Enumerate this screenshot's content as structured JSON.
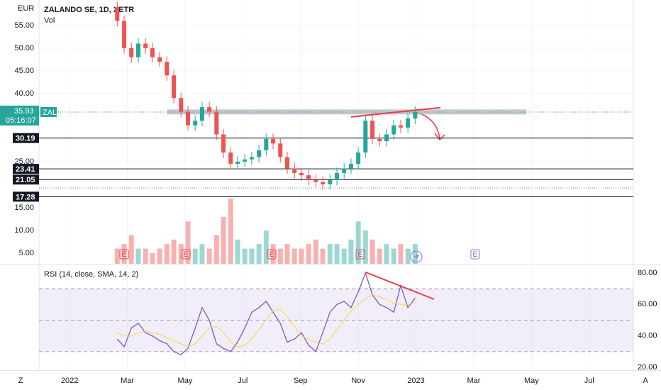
{
  "ui": {
    "left_button": "Z",
    "right_button": "A"
  },
  "chart_data": [
    {
      "type": "candlestick",
      "title": "ZALANDO SE, 1D, XETR",
      "y_label": "EUR",
      "x": [
        1.65,
        1.89,
        2.14,
        2.38,
        2.63,
        2.87,
        3.12,
        3.37,
        3.61,
        3.86,
        4.1,
        4.35,
        4.59,
        4.84,
        5.09,
        5.33,
        5.58,
        5.82,
        6.07,
        6.31,
        6.56,
        6.81,
        7.05,
        7.3,
        7.54,
        7.79,
        8.03,
        8.28,
        8.53,
        8.77,
        9.02,
        9.26,
        9.51,
        9.75,
        10.0,
        10.25,
        10.49,
        10.74,
        10.98,
        11.23,
        11.47,
        11.72,
        11.97
      ],
      "open": [
        59,
        56,
        50,
        48,
        51,
        50,
        48,
        47,
        44,
        39,
        36,
        33,
        34,
        37,
        36,
        31,
        27,
        24.5,
        25,
        25.5,
        26,
        27.5,
        30,
        29,
        26,
        23.5,
        22.5,
        22,
        21,
        20.5,
        20,
        21,
        22.5,
        23.5,
        24.5,
        27,
        34,
        30,
        29.5,
        31,
        33,
        32.5,
        34.5
      ],
      "high": [
        60.2,
        57.2,
        51.2,
        52.2,
        52.2,
        51.2,
        49.2,
        48.2,
        45.2,
        40.2,
        37.2,
        35.2,
        38.2,
        38.2,
        37.2,
        32.2,
        28.2,
        26.2,
        26.7,
        27.2,
        28.7,
        31.2,
        31.2,
        30.2,
        27.2,
        24.7,
        23.7,
        23.2,
        22.2,
        21.7,
        22.2,
        23.7,
        24.7,
        25.7,
        28.2,
        35.2,
        35.2,
        31.2,
        32.2,
        34.2,
        34.2,
        35.7,
        37.13
      ],
      "low": [
        54.8,
        48.8,
        46.8,
        46.8,
        48.8,
        46.8,
        45.8,
        42.8,
        37.8,
        34.8,
        31.8,
        31.8,
        32.8,
        34.8,
        29.8,
        25.8,
        23.3,
        23.3,
        23.8,
        24.3,
        24.8,
        26.3,
        27.8,
        24.8,
        22.3,
        21.3,
        20.8,
        19.8,
        19.3,
        18.8,
        18.8,
        19.8,
        21.3,
        22.3,
        23.3,
        25.8,
        28.8,
        28.3,
        28.3,
        29.8,
        31.3,
        31.3,
        33.3
      ],
      "close": [
        56,
        50,
        48,
        51,
        50,
        48,
        47,
        44,
        39,
        36,
        33,
        34,
        37,
        36,
        31,
        27,
        24.5,
        25,
        25.5,
        26,
        27.5,
        30,
        29,
        26,
        23.5,
        22.5,
        22,
        21,
        20.5,
        20,
        21,
        22.5,
        23.5,
        24.5,
        27,
        34,
        30,
        29.5,
        31,
        33,
        32.5,
        34.5,
        35.93
      ],
      "up_color": "#26a69a",
      "down_color": "#ef5350",
      "xlim": [
        -1.06,
        19.53
      ],
      "xticks": [
        {
          "value": 0,
          "label": "2022"
        },
        {
          "value": 2,
          "label": "Mar"
        },
        {
          "value": 4,
          "label": "May"
        },
        {
          "value": 6,
          "label": "Jul"
        },
        {
          "value": 8,
          "label": "Sep"
        },
        {
          "value": 10,
          "label": "Nov"
        },
        {
          "value": 12,
          "label": "2023"
        },
        {
          "value": 14,
          "label": "Mar"
        },
        {
          "value": 16,
          "label": "May"
        },
        {
          "value": 18,
          "label": "Jul"
        }
      ],
      "ylim": [
        2.5,
        60.6
      ],
      "yticks": [
        {
          "value": 25,
          "label": "25.00"
        },
        {
          "value": 40,
          "label": "40.00"
        },
        {
          "value": 45,
          "label": "45.00"
        },
        {
          "value": 50,
          "label": "50.00"
        },
        {
          "value": 55,
          "label": "55.00"
        }
      ],
      "grid": true,
      "symbol": "ZAL",
      "last_price": 35.93,
      "countdown": "05:16:07",
      "levels": [
        30.19,
        23.41,
        21.05,
        17.28
      ],
      "dotted_levels": [
        19.2
      ],
      "resistance_band": {
        "x": [
          3.37,
          15.82
        ],
        "y": [
          35.4,
          36.5
        ],
        "color": "#b2b5be"
      },
      "trendlines": [
        {
          "x": [
            9.75,
            12.85
          ],
          "y": [
            34.85,
            36.9
          ],
          "color": "#f23645"
        }
      ],
      "markers": [
        {
          "x": 1.89,
          "label": "E",
          "color": "#f23645"
        },
        {
          "x": 4.03,
          "label": "E",
          "color": "#f23645"
        },
        {
          "x": 7.0,
          "label": "E",
          "color": "#f23645"
        },
        {
          "x": 10.07,
          "label": "E",
          "color": "#f23645"
        },
        {
          "x": 14.05,
          "label": "E",
          "color": "#9c6fc7"
        }
      ]
    },
    {
      "type": "bar",
      "title": "Vol",
      "x": [
        1.65,
        1.89,
        2.14,
        2.38,
        2.63,
        2.87,
        3.12,
        3.37,
        3.61,
        3.86,
        4.1,
        4.35,
        4.59,
        4.84,
        5.09,
        5.33,
        5.58,
        5.82,
        6.07,
        6.31,
        6.56,
        6.81,
        7.05,
        7.3,
        7.54,
        7.79,
        8.03,
        8.28,
        8.53,
        8.77,
        9.02,
        9.26,
        9.51,
        9.75,
        10.0,
        10.25,
        10.49,
        10.74,
        10.98,
        11.23,
        11.47,
        11.72,
        11.97
      ],
      "values": [
        6,
        7,
        9,
        6,
        6,
        5,
        6,
        7,
        8,
        7,
        12,
        6,
        7,
        6,
        9,
        13,
        17,
        8,
        6,
        6,
        7,
        10,
        7,
        6,
        7,
        6,
        6,
        7,
        8,
        6,
        7,
        7,
        6,
        8,
        12,
        10,
        8,
        6,
        7,
        6,
        7,
        6,
        7
      ],
      "up_color": "rgba(38,166,154,0.45)",
      "down_color": "rgba(239,83,80,0.45)",
      "xlim": [
        -1.06,
        19.53
      ],
      "ylim": [
        2.66,
        60.8
      ],
      "yticks": [
        {
          "value": 5,
          "label": "5.00"
        },
        {
          "value": 10,
          "label": "10.00"
        },
        {
          "value": 15,
          "label": "15.00"
        }
      ]
    },
    {
      "type": "line",
      "title": "RSI (14, close, SMA, 14, 2)",
      "x": [
        1.65,
        1.89,
        2.14,
        2.38,
        2.63,
        2.87,
        3.12,
        3.37,
        3.61,
        3.86,
        4.1,
        4.35,
        4.59,
        4.84,
        5.09,
        5.33,
        5.58,
        5.82,
        6.07,
        6.31,
        6.56,
        6.81,
        7.05,
        7.3,
        7.54,
        7.79,
        8.03,
        8.28,
        8.53,
        8.77,
        9.02,
        9.26,
        9.51,
        9.75,
        10.0,
        10.25,
        10.49,
        10.74,
        10.98,
        11.23,
        11.47,
        11.72,
        11.97
      ],
      "series": [
        {
          "color": "#7e57c2",
          "values": [
            38,
            33,
            45,
            48,
            42,
            40,
            37,
            35,
            30,
            28,
            32,
            45,
            58,
            50,
            35,
            32,
            30,
            36,
            45,
            55,
            58,
            62,
            55,
            48,
            36,
            38,
            42,
            34,
            30,
            42,
            55,
            60,
            62,
            58,
            68,
            80,
            66,
            60,
            58,
            55,
            72,
            58,
            64
          ]
        },
        {
          "color": "#f5d547",
          "values": [
            42,
            40,
            40,
            42,
            43,
            42,
            41,
            39,
            37,
            35,
            33,
            35,
            40,
            45,
            46,
            42,
            36,
            33,
            34,
            38,
            44,
            50,
            56,
            57,
            52,
            46,
            40,
            38,
            36,
            35,
            38,
            44,
            50,
            56,
            60,
            64,
            66,
            65,
            63,
            61,
            60,
            60,
            61
          ]
        }
      ],
      "xlim": [
        -1.06,
        19.53
      ],
      "ylim": [
        18.2,
        84.5
      ],
      "yticks": [
        {
          "value": 20,
          "label": "20.00"
        },
        {
          "value": 40,
          "label": "40.00"
        },
        {
          "value": 60,
          "label": "60.00"
        },
        {
          "value": 80,
          "label": "80.00"
        }
      ],
      "band": [
        30,
        70
      ],
      "band_color": "rgba(126,87,194,0.1)",
      "midline": 50,
      "trendlines": [
        {
          "x": [
            10.25,
            12.63
          ],
          "y": [
            80.5,
            63.3
          ],
          "color": "#f23645"
        }
      ]
    }
  ]
}
